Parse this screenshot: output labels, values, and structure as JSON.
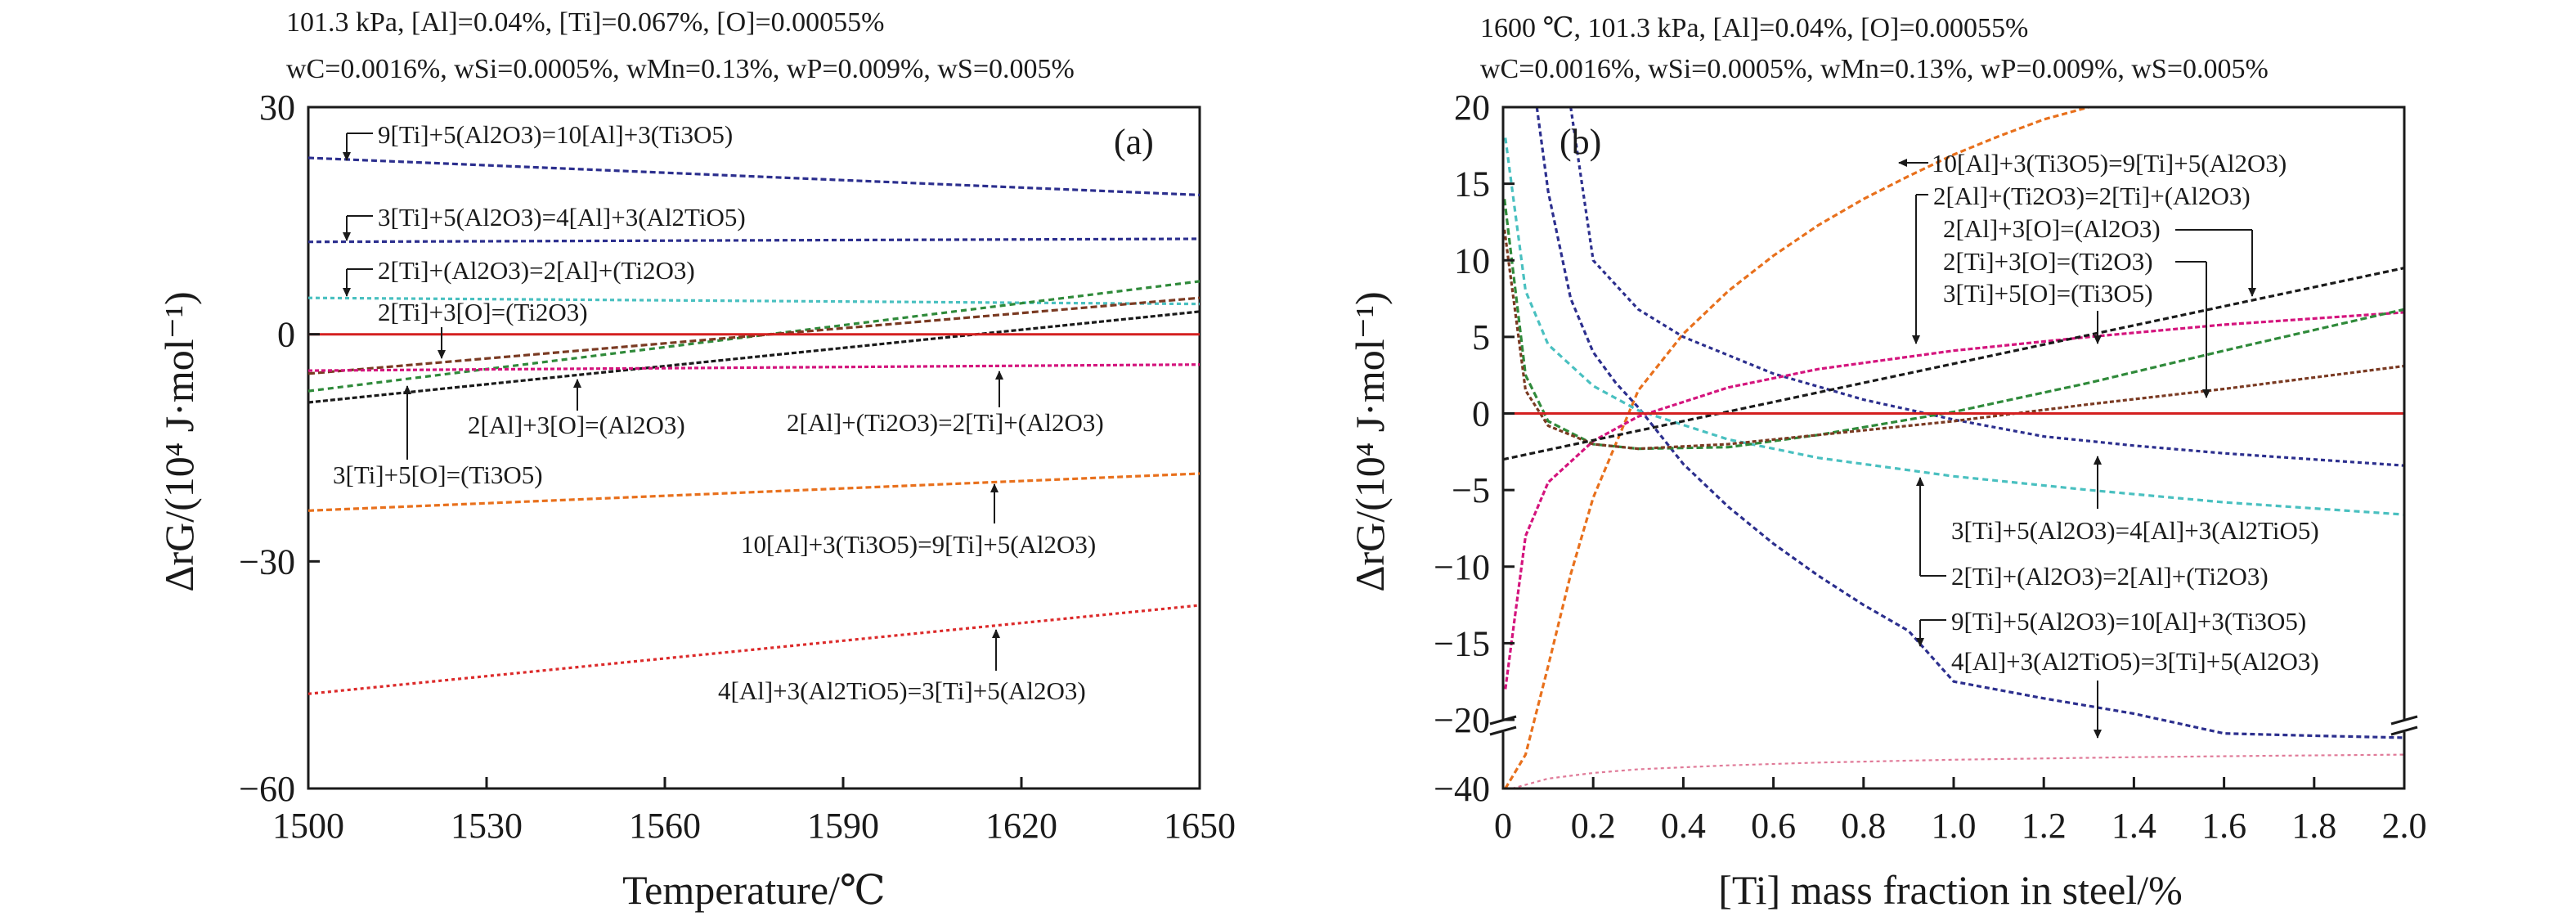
{
  "panel_a": {
    "header_line1": "101.3 kPa, [Al]=0.04%, [Ti]=0.067%,  [O]=0.00055%",
    "header_line2": "wC=0.0016%, wSi=0.0005%, wMn=0.13%, wP=0.009%, wS=0.005%",
    "panel_label": "(a)"
  },
  "panel_b": {
    "header_line1": "1600 ℃, 101.3 kPa, [Al]=0.04%,  [O]=0.00055%",
    "header_line2": "wC=0.0016%, wSi=0.0005%, wMn=0.13%, wP=0.009%, wS=0.005%",
    "panel_label": "(b)"
  },
  "colors": {
    "red": "#d42020",
    "blue": "#2c2f8e",
    "cyan": "#49c0c0",
    "green": "#2f8a3a",
    "black": "#1a1a1a",
    "magenta": "#d4147d",
    "orange": "#e8701c",
    "darkred": "#dc2a2a",
    "brown": "#7a3a22",
    "pink": "#e07a98"
  },
  "chart_data": [
    {
      "type": "line",
      "xlabel": "Temperature/℃",
      "ylabel": "ΔrG/(10⁴ J·mol⁻¹)",
      "xlim": [
        1500,
        1650
      ],
      "ylim": [
        -60,
        30
      ],
      "xticks": [
        "1500",
        "1530",
        "1560",
        "1590",
        "1620",
        "1650"
      ],
      "yticks": [
        "30",
        "0",
        "−30",
        "−60"
      ],
      "x": [
        1500,
        1650
      ],
      "series": [
        {
          "name": "9[Ti]+5(Al2O3)=10[Al]+3(Ti3O5)",
          "color": "#2c2f8e",
          "values": [
            23.3,
            18.4
          ]
        },
        {
          "name": "3[Ti]+5(Al2O3)=4[Al]+3(Al2TiO5)",
          "color": "#2c2f8e",
          "values": [
            12.2,
            12.6
          ]
        },
        {
          "name": "2[Ti]+(Al2O3)=2[Al]+(Ti2O3)",
          "color": "#49c0c0",
          "values": [
            4.8,
            4.0
          ]
        },
        {
          "name": "2[Ti]+3[O]=(Ti2O3)",
          "color": "#2f8a3a",
          "values": [
            -7.5,
            7.0
          ]
        },
        {
          "name": "2[Al]+3[O]=(Al2O3)",
          "color": "#1a1a1a",
          "values": [
            -9.0,
            3.0
          ]
        },
        {
          "name": "3[Ti]+5[O]=(Ti3O5)",
          "color": "#7a3a22",
          "values": [
            -5.2,
            4.8
          ]
        },
        {
          "name": "2[Al]+(Ti2O3)=2[Ti]+(Al2O3)",
          "color": "#d4147d",
          "values": [
            -4.8,
            -4.0
          ]
        },
        {
          "name": "10[Al]+3(Ti3O5)=9[Ti]+5(Al2O3)",
          "color": "#e8701c",
          "values": [
            -23.3,
            -18.4
          ]
        },
        {
          "name": "4[Al]+3(Al2TiO5)=3[Ti]+5(Al2O3)",
          "color": "#dc2a2a",
          "values": [
            -47.5,
            -35.8
          ]
        },
        {
          "name": "",
          "color": "#d42020",
          "values": [
            0,
            0
          ]
        }
      ],
      "annotations": [
        "9[Ti]+5(Al2O3)=10[Al]+3(Ti3O5)",
        "3[Ti]+5(Al2O3)=4[Al]+3(Al2TiO5)",
        "2[Ti]+(Al2O3)=2[Al]+(Ti2O3)",
        "2[Ti]+3[O]=(Ti2O3)",
        "2[Al]+3[O]=(Al2O3)",
        "2[Al]+(Ti2O3)=2[Ti]+(Al2O3)",
        "3[Ti]+5[O]=(Ti3O5)",
        "10[Al]+3(Ti3O5)=9[Ti]+5(Al2O3)",
        "4[Al]+3(Al2TiO5)=3[Ti]+5(Al2O3)"
      ]
    },
    {
      "type": "line",
      "xlabel": "[Ti] mass fraction in steel/%",
      "ylabel": "ΔrG/(10⁴ J·mol⁻¹)",
      "xlim": [
        0,
        2.0
      ],
      "ylim": [
        -40,
        20
      ],
      "axis_break": "between −20 and −40",
      "xticks": [
        "0",
        "0.2",
        "0.4",
        "0.6",
        "0.8",
        "1.0",
        "1.2",
        "1.4",
        "1.6",
        "1.8",
        "2.0"
      ],
      "yticks": [
        "20",
        "15",
        "10",
        "5",
        "0",
        "−5",
        "−10",
        "−15",
        "−20",
        "−40"
      ],
      "series": [
        {
          "name": "10[Al]+3(Ti3O5)=9[Ti]+5(Al2O3)",
          "color": "#e8701c",
          "x": [
            0.005,
            0.05,
            0.1,
            0.15,
            0.2,
            0.3,
            0.4,
            0.5,
            0.6,
            0.7,
            0.8,
            0.9,
            1.0,
            1.1,
            1.2,
            1.3
          ],
          "y": [
            -40,
            -28,
            -16.5,
            -10.5,
            -5.5,
            1.5,
            5.2,
            8,
            10.3,
            12.3,
            14,
            15.5,
            16.9,
            18.1,
            19.2,
            20
          ]
        },
        {
          "name": "9[Ti]+5(Al2O3)=10[Al]+3(Ti3O5)",
          "color": "#2c2f8e",
          "x": [
            0.075,
            0.1,
            0.15,
            0.2,
            0.25,
            0.3,
            0.4,
            0.5,
            0.6,
            0.7,
            0.8,
            0.9,
            1.0,
            1.2,
            1.4,
            1.6,
            1.8,
            2.0
          ],
          "y": [
            20,
            14.5,
            7.5,
            4.0,
            2.0,
            0.4,
            -3.3,
            -6.1,
            -8.5,
            -10.6,
            -12.5,
            -14.2,
            -17.5,
            -18.6,
            -19.6,
            -20.5,
            -21.3,
            -22.0
          ]
        },
        {
          "name": "3[Ti]+5(Al2O3)=4[Al]+3(Al2TiO5)",
          "color": "#2c2f8e",
          "x": [
            0.15,
            0.2,
            0.3,
            0.4,
            0.6,
            0.8,
            1.0,
            1.2,
            1.4,
            1.6,
            1.8,
            2.0
          ],
          "y": [
            20,
            10.0,
            6.8,
            5.0,
            2.6,
            0.9,
            -0.4,
            -1.5,
            -2.1,
            -2.6,
            -3.0,
            -3.4
          ]
        },
        {
          "name": "2[Ti]+(Al2O3)=2[Al]+(Ti2O3)",
          "color": "#49c0c0",
          "x": [
            0.005,
            0.05,
            0.1,
            0.2,
            0.3,
            0.5,
            0.7,
            1.0,
            1.3,
            1.6,
            2.0
          ],
          "y": [
            18,
            8.0,
            4.5,
            1.8,
            0.2,
            -1.7,
            -2.9,
            -4.1,
            -5.0,
            -5.8,
            -6.6
          ]
        },
        {
          "name": "2[Al]+(Ti2O3)=2[Ti]+(Al2O3)",
          "color": "#d4147d",
          "x": [
            0.005,
            0.05,
            0.1,
            0.2,
            0.3,
            0.5,
            0.7,
            1.0,
            1.3,
            1.6,
            2.0
          ],
          "y": [
            -18,
            -8.0,
            -4.5,
            -1.8,
            -0.2,
            1.7,
            2.9,
            4.1,
            5.0,
            5.8,
            6.6
          ]
        },
        {
          "name": "2[Ti]+3[O]=(Ti2O3)",
          "color": "#2f8a3a",
          "x": [
            0.003,
            0.05,
            0.1,
            0.2,
            0.3,
            0.5,
            0.7,
            1.0,
            1.3,
            1.6,
            2.0
          ],
          "y": [
            14,
            2.5,
            -0.5,
            -2.0,
            -2.3,
            -2.2,
            -1.4,
            0.1,
            2.0,
            4.1,
            6.8
          ]
        },
        {
          "name": "3[Ti]+5[O]=(Ti3O5)",
          "color": "#7a3a22",
          "x": [
            0.003,
            0.05,
            0.1,
            0.2,
            0.3,
            0.5,
            0.7,
            1.0,
            1.3,
            1.6,
            2.0
          ],
          "y": [
            12,
            1.5,
            -0.8,
            -2.0,
            -2.3,
            -2.0,
            -1.4,
            -0.5,
            0.6,
            1.6,
            3.1
          ]
        },
        {
          "name": "2[Al]+3[O]=(Al2O3)",
          "color": "#1a1a1a",
          "x": [
            0,
            2.0
          ],
          "y": [
            -3.0,
            9.5
          ]
        },
        {
          "name": "4[Al]+3(Al2TiO5)=3[Ti]+5(Al2O3)",
          "color": "#e07a98",
          "x": [
            0.02,
            0.1,
            0.2,
            0.3,
            0.5,
            0.7,
            1.0,
            1.4,
            1.7,
            2.0
          ],
          "y": [
            -40,
            -36.5,
            -34.5,
            -33.2,
            -31.8,
            -30.8,
            -29.8,
            -28.9,
            -28.4,
            -28.0
          ]
        },
        {
          "name": "",
          "color": "#d42020",
          "x": [
            0,
            2.0
          ],
          "y": [
            0,
            0
          ]
        }
      ],
      "annotations": [
        "10[Al]+3(Ti3O5)=9[Ti]+5(Al2O3)",
        "2[Al]+(Ti2O3)=2[Ti]+(Al2O3)",
        "2[Al]+3[O]=(Al2O3)",
        "2[Ti]+3[O]=(Ti2O3)",
        "3[Ti]+5[O]=(Ti3O5)",
        "3[Ti]+5(Al2O3)=4[Al]+3(Al2TiO5)",
        "2[Ti]+(Al2O3)=2[Al]+(Ti2O3)",
        "9[Ti]+5(Al2O3)=10[Al]+3(Ti3O5)",
        "4[Al]+3(Al2TiO5)=3[Ti]+5(Al2O3)"
      ]
    }
  ]
}
